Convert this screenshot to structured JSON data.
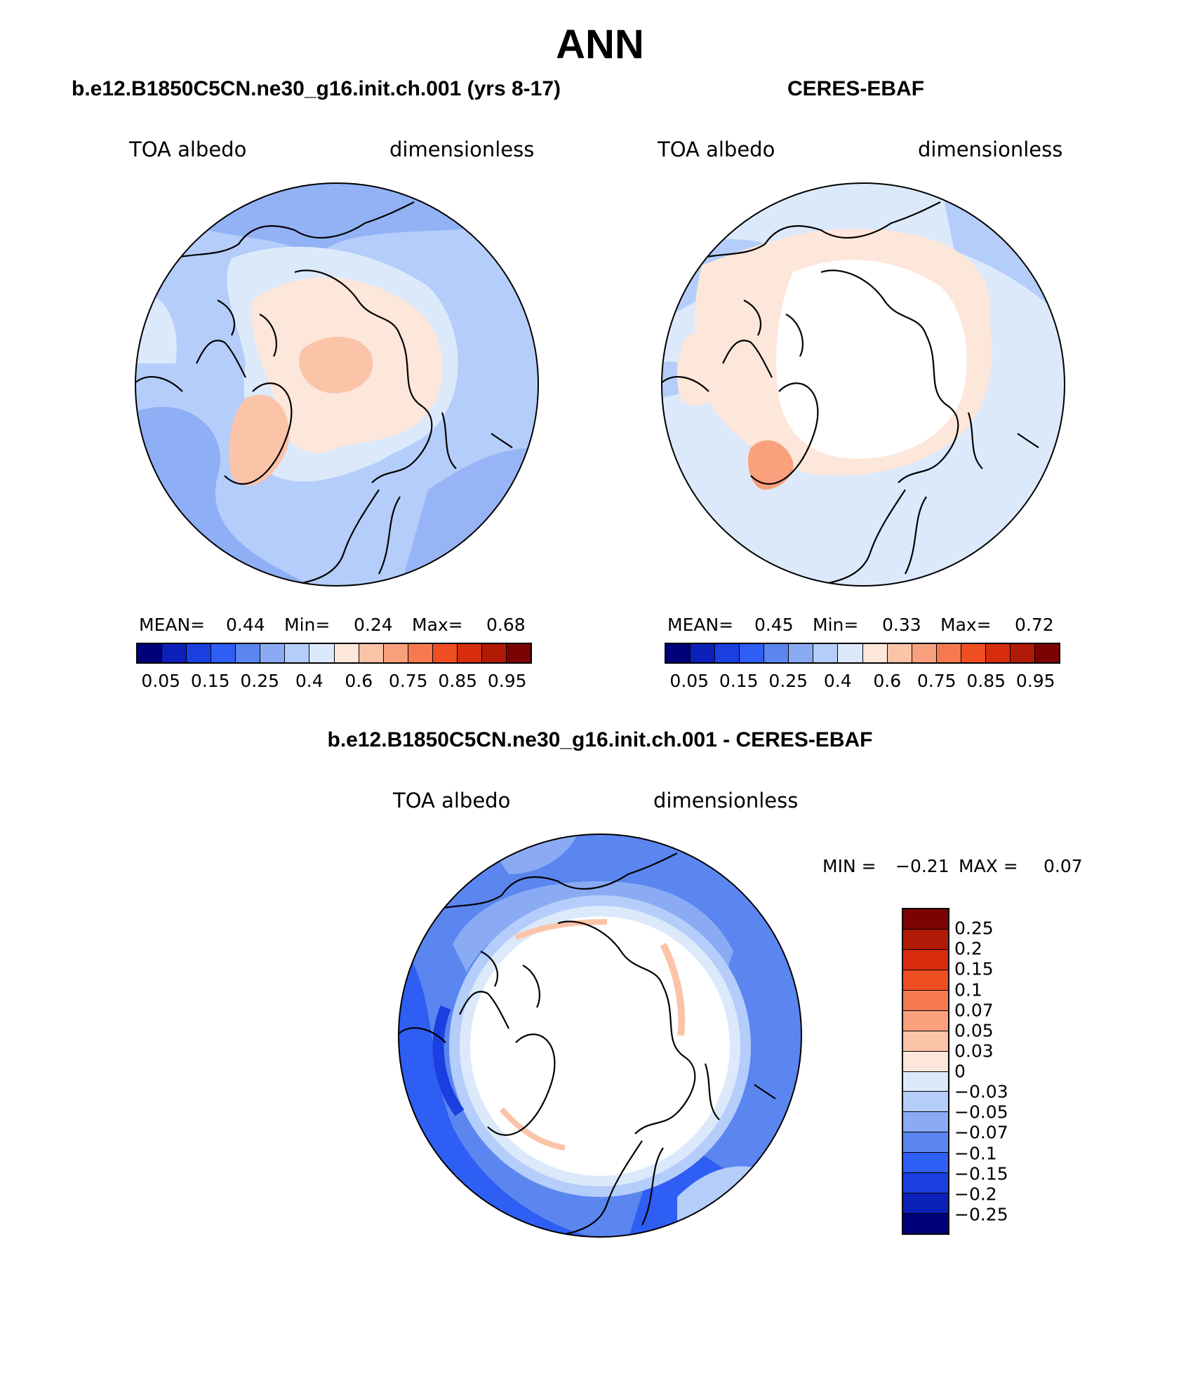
{
  "main_title": "ANN",
  "panels": [
    {
      "title": "b.e12.B1850C5CN.ne30_g16.init.ch.001 (yrs 8-17)",
      "left_label": "TOA albedo",
      "right_label": "dimensionless",
      "stats": {
        "mean_label": "MEAN=",
        "mean": "0.44",
        "min_label": "Min=",
        "min": "0.24",
        "max_label": "Max=",
        "max": "0.68"
      }
    },
    {
      "title": "CERES-EBAF",
      "left_label": "TOA albedo",
      "right_label": "dimensionless",
      "stats": {
        "mean_label": "MEAN=",
        "mean": "0.45",
        "min_label": "Min=",
        "min": "0.33",
        "max_label": "Max=",
        "max": "0.72"
      }
    },
    {
      "title": "b.e12.B1850C5CN.ne30_g16.init.ch.001 - CERES-EBAF",
      "left_label": "TOA albedo",
      "right_label": "dimensionless",
      "stats": {
        "min_label": "MIN =",
        "min": "−0.21",
        "max_label": "MAX =",
        "max": "0.07"
      }
    }
  ],
  "colorbar_main": {
    "colors": [
      "#00007a",
      "#0a20b8",
      "#1a3fe0",
      "#2f5ef5",
      "#5b86f0",
      "#8aabf4",
      "#b5cdfa",
      "#dce9fb",
      "#fde6da",
      "#fbc3a8",
      "#f9a07c",
      "#f57a50",
      "#ef4e22",
      "#d72d0e",
      "#b11a06",
      "#7d0303"
    ],
    "labels": [
      "0.05",
      "0.15",
      "0.25",
      "0.4",
      "0.6",
      "0.75",
      "0.85",
      "0.95"
    ]
  },
  "colorbar_diff": {
    "colors": [
      "#7d0303",
      "#b11a06",
      "#d72d0e",
      "#ef4e22",
      "#f57a50",
      "#f9a07c",
      "#fbc3a8",
      "#fde6da",
      "#dce9fb",
      "#b5cdfa",
      "#8aabf4",
      "#5b86f0",
      "#2f5ef5",
      "#1a3fe0",
      "#0a20b8",
      "#00007a"
    ],
    "labels": [
      "0.25",
      "0.2",
      "0.15",
      "0.1",
      "0.07",
      "0.05",
      "0.03",
      "0",
      "−0.03",
      "−0.05",
      "−0.07",
      "−0.1",
      "−0.15",
      "−0.2",
      "−0.25"
    ]
  }
}
